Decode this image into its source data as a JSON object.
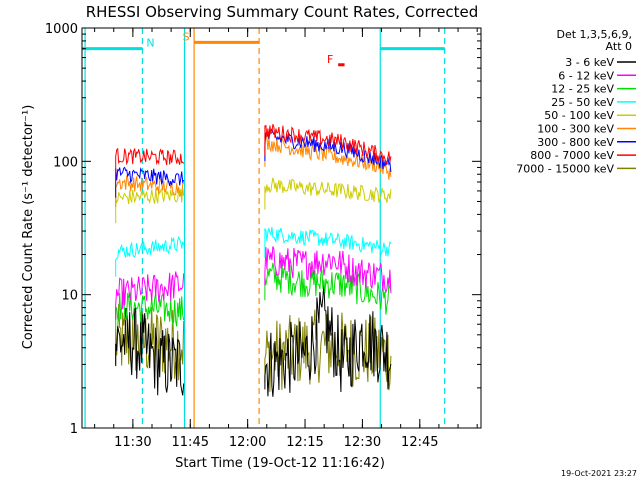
{
  "chart_data": {
    "type": "line",
    "title": "RHESSI Observing Summary Count Rates, Corrected",
    "xlabel": "Start Time (19-Oct-12 11:16:42)",
    "ylabel": "Corrected Count Rate (s⁻¹ detector⁻¹)",
    "yscale": "log",
    "xlim": [
      "11:16:42",
      "13:01:00"
    ],
    "ylim": [
      1,
      1000
    ],
    "x_ticks": [
      "11:30",
      "11:45",
      "12:00",
      "12:15",
      "12:30",
      "12:45"
    ],
    "y_ticks": [
      "1",
      "10",
      "100",
      "1000"
    ],
    "timestamp": "19-Oct-2021 23:27",
    "legend": {
      "position": "right",
      "header": [
        "Det 1,3,5,6,9,",
        "Att 0"
      ],
      "entries": [
        {
          "label": "3 - 6 keV",
          "color": "#000000"
        },
        {
          "label": "6 - 12 keV",
          "color": "#ff00ff"
        },
        {
          "label": "12 - 25 keV",
          "color": "#00dd00"
        },
        {
          "label": "25 - 50 keV",
          "color": "#00ffff"
        },
        {
          "label": "50 - 100 keV",
          "color": "#cccc00"
        },
        {
          "label": "100 - 300 keV",
          "color": "#ff8800"
        },
        {
          "label": "300 - 800 keV",
          "color": "#0000ff"
        },
        {
          "label": "800 - 7000 keV",
          "color": "#ff0000"
        },
        {
          "label": "7000 - 15000 keV",
          "color": "#808000"
        }
      ]
    },
    "flags": [
      {
        "label": "N",
        "color": "#00e0e0",
        "segments": [
          [
            "11:16:42",
            "11:32:30"
          ],
          [
            "12:34:40",
            "12:51:30"
          ]
        ],
        "y": 700
      },
      {
        "label": "S",
        "color": "#ff8800",
        "segments": [
          [
            "11:46:00",
            "12:03:00"
          ]
        ],
        "y": 780
      },
      {
        "label": "F",
        "color": "#ff0000",
        "segments": [
          [
            "12:23:40",
            "12:25:20"
          ]
        ],
        "y": 530
      }
    ],
    "vlines": [
      {
        "time": "11:17:30",
        "color": "#00e0e0",
        "style": "solid"
      },
      {
        "time": "11:32:30",
        "color": "#00e0e0",
        "style": "dashed"
      },
      {
        "time": "11:43:30",
        "color": "#00e0e0",
        "style": "solid"
      },
      {
        "time": "11:46:00",
        "color": "#ff8800",
        "style": "solid"
      },
      {
        "time": "12:03:00",
        "color": "#ff8800",
        "style": "dashed"
      },
      {
        "time": "12:34:40",
        "color": "#00e0e0",
        "style": "solid"
      },
      {
        "time": "12:51:30",
        "color": "#00e0e0",
        "style": "dashed"
      }
    ],
    "series": [
      {
        "name": "7000 - 15000 keV",
        "color": "#808000",
        "segments": [
          {
            "x": [
              "11:25:30",
              "11:35:00",
              "11:43:30"
            ],
            "y": [
              4.5,
              4.4,
              4.3
            ]
          },
          {
            "x": [
              "12:04:30",
              "12:20:00",
              "12:37:30"
            ],
            "y": [
              3.4,
              4.2,
              3.5
            ]
          }
        ]
      },
      {
        "name": "3 - 6 keV",
        "color": "#000000",
        "segments": [
          {
            "x": [
              "11:25:30",
              "11:30:00",
              "11:35:00",
              "11:38:00",
              "11:43:30"
            ],
            "y": [
              4.5,
              4.5,
              3.5,
              3.0,
              3.0
            ]
          },
          {
            "x": [
              "12:04:30",
              "12:15:00",
              "12:20:00",
              "12:25:00",
              "12:30:00",
              "12:37:30"
            ],
            "y": [
              3.0,
              3.5,
              6.5,
              3.0,
              5.0,
              3.5
            ]
          }
        ]
      },
      {
        "name": "12 - 25 keV",
        "color": "#00dd00",
        "segments": [
          {
            "x": [
              "11:25:30",
              "11:35:00",
              "11:43:30"
            ],
            "y": [
              8.3,
              7.9,
              7.5
            ]
          },
          {
            "x": [
              "12:04:30",
              "12:15:00",
              "12:25:00",
              "12:37:30"
            ],
            "y": [
              14.0,
              12.5,
              12.0,
              9.0
            ]
          }
        ]
      },
      {
        "name": "6 - 12 keV",
        "color": "#ff00ff",
        "segments": [
          {
            "x": [
              "11:25:30",
              "11:35:00",
              "11:43:30"
            ],
            "y": [
              10.0,
              11.0,
              12.0
            ]
          },
          {
            "x": [
              "12:04:30",
              "12:15:00",
              "12:22:00",
              "12:28:00",
              "12:37:30"
            ],
            "y": [
              18.0,
              17.0,
              18.5,
              15.0,
              13.5
            ]
          }
        ]
      },
      {
        "name": "25 - 50 keV",
        "color": "#00ffff",
        "segments": [
          {
            "x": [
              "11:25:30",
              "11:35:00",
              "11:43:30"
            ],
            "y": [
              21.0,
              22.5,
              24.0
            ]
          },
          {
            "x": [
              "12:04:30",
              "12:15:00",
              "12:25:00",
              "12:37:30"
            ],
            "y": [
              29.0,
              27.0,
              25.0,
              22.0
            ]
          }
        ]
      },
      {
        "name": "50 - 100 keV",
        "color": "#cccc00",
        "segments": [
          {
            "x": [
              "11:25:30",
              "11:35:00",
              "11:43:30"
            ],
            "y": [
              53.0,
              55.0,
              56.0
            ]
          },
          {
            "x": [
              "12:04:30",
              "12:15:00",
              "12:25:00",
              "12:37:30"
            ],
            "y": [
              67.0,
              63.0,
              60.0,
              55.0
            ]
          }
        ]
      },
      {
        "name": "100 - 300 keV",
        "color": "#ff8800",
        "segments": [
          {
            "x": [
              "11:25:30",
              "11:35:00",
              "11:43:30"
            ],
            "y": [
              70.0,
              66.0,
              63.0
            ]
          },
          {
            "x": [
              "12:04:30",
              "12:15:00",
              "12:25:00",
              "12:33:00",
              "12:37:30"
            ],
            "y": [
              140.0,
              120.0,
              105.0,
              95.0,
              82.0
            ]
          }
        ]
      },
      {
        "name": "300 - 800 keV",
        "color": "#0000ff",
        "segments": [
          {
            "x": [
              "11:25:30",
              "11:35:00",
              "11:43:30"
            ],
            "y": [
              82.0,
              77.0,
              73.0
            ]
          },
          {
            "x": [
              "12:04:30",
              "12:15:00",
              "12:25:00",
              "12:37:30"
            ],
            "y": [
              155.0,
              138.0,
              125.0,
              95.0
            ]
          }
        ]
      },
      {
        "name": "800 - 7000 keV",
        "color": "#ff0000",
        "segments": [
          {
            "x": [
              "11:25:30",
              "11:35:00",
              "11:43:30"
            ],
            "y": [
              110.0,
              108.0,
              106.0
            ]
          },
          {
            "x": [
              "12:04:30",
              "12:15:00",
              "12:25:00",
              "12:37:30"
            ],
            "y": [
              170.0,
              155.0,
              140.0,
              105.0
            ]
          }
        ]
      }
    ]
  }
}
